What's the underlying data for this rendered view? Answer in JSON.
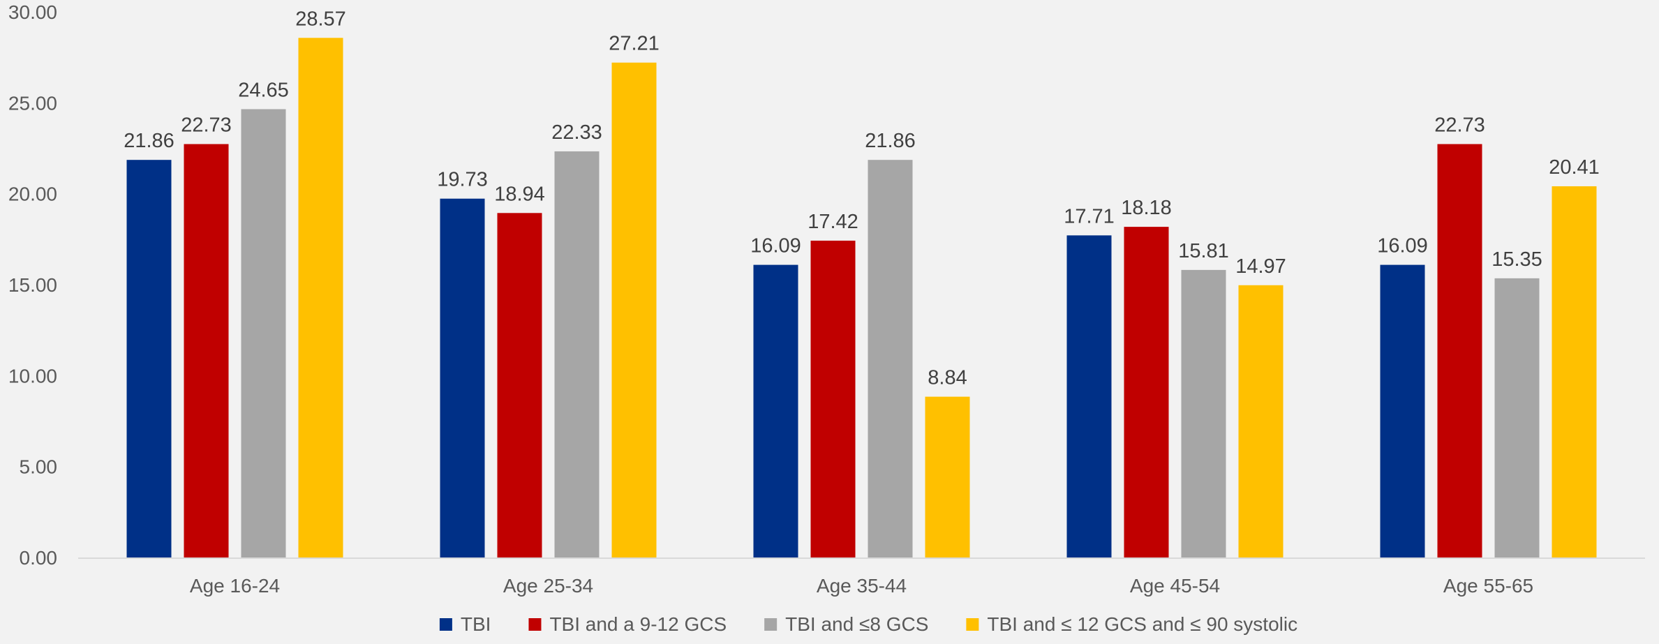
{
  "chart_data": {
    "type": "bar",
    "title": "",
    "xlabel": "",
    "ylabel": "",
    "categories": [
      "Age 16-24",
      "Age 25-34",
      "Age 35-44",
      "Age 45-54",
      "Age 55-65"
    ],
    "series": [
      {
        "name": "TBI",
        "color": "#003087",
        "values": [
          21.86,
          19.73,
          16.09,
          17.71,
          16.09
        ]
      },
      {
        "name": "TBI and a 9-12 GCS",
        "color": "#c00000",
        "values": [
          22.73,
          18.94,
          17.42,
          18.18,
          22.73
        ]
      },
      {
        "name": "TBI and ≤8 GCS",
        "color": "#a6a6a6",
        "values": [
          24.65,
          22.33,
          21.86,
          15.81,
          15.35
        ]
      },
      {
        "name": "TBI and ≤ 12 GCS and ≤ 90 systolic",
        "color": "#ffc000",
        "values": [
          28.57,
          27.21,
          8.84,
          14.97,
          20.41
        ]
      }
    ],
    "ylim": [
      0,
      30
    ],
    "yticks": [
      "0.00",
      "5.00",
      "10.00",
      "15.00",
      "20.00",
      "25.00",
      "30.00"
    ],
    "data_labels": [
      [
        "21.86",
        "19.73",
        "16.09",
        "17.71",
        "16.09"
      ],
      [
        "22.73",
        "18.94",
        "17.42",
        "18.18",
        "22.73"
      ],
      [
        "24.65",
        "22.33",
        "21.86",
        "15.81",
        "15.35"
      ],
      [
        "28.57",
        "27.21",
        "8.84",
        "14.97",
        "20.41"
      ]
    ],
    "grid": false,
    "legend": "bottom-center"
  }
}
